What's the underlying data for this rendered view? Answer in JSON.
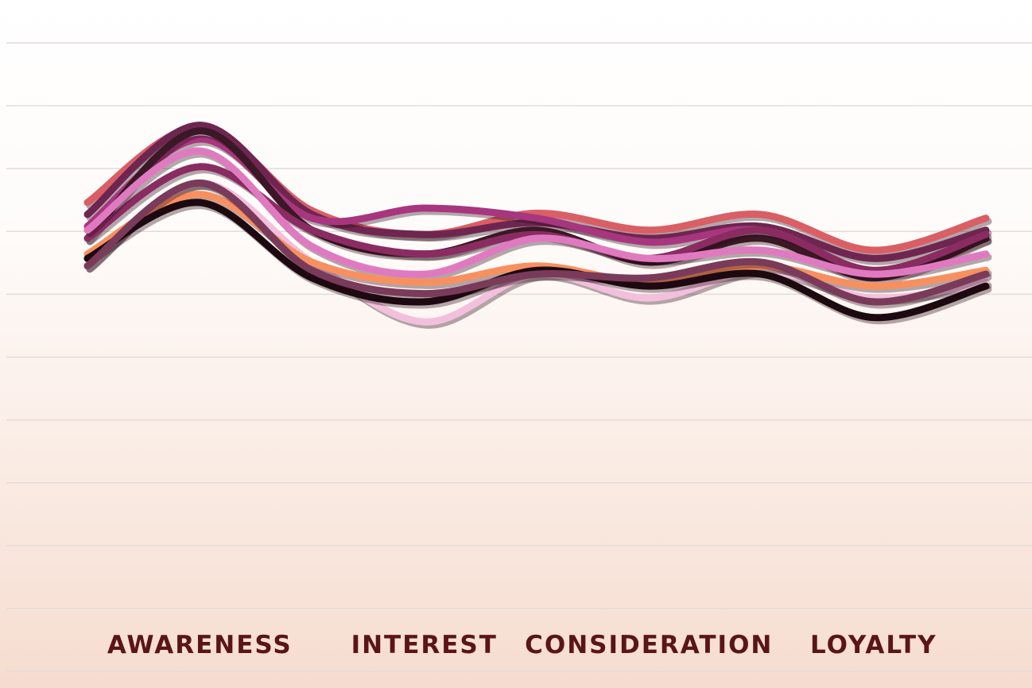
{
  "chart_data": {
    "type": "line",
    "categories": [
      null,
      "AWARENESS",
      null,
      "INTEREST",
      null,
      "CONSIDERATION",
      null,
      "LOYALTY",
      null
    ],
    "ylim": [
      0,
      10
    ],
    "yticks": [
      0,
      1,
      2,
      3,
      4,
      5,
      6,
      7,
      8,
      9,
      10
    ],
    "grid": true,
    "series": [
      {
        "color": "#d95f65",
        "values": [
          7.46,
          8.66,
          7.33,
          6.95,
          7.29,
          7.02,
          7.27,
          6.7,
          7.21
        ]
      },
      {
        "color": "#6e2650",
        "values": [
          7.27,
          8.69,
          7.27,
          6.95,
          7.14,
          6.89,
          7.08,
          6.57,
          7.02
        ]
      },
      {
        "color": "#a8367f",
        "values": [
          7.08,
          8.47,
          7.21,
          7.37,
          7.21,
          6.83,
          7.02,
          6.38,
          6.89
        ]
      },
      {
        "color": "#3b1826",
        "values": [
          6.89,
          8.6,
          7.02,
          6.64,
          7.02,
          6.51,
          6.89,
          6.26,
          6.89
        ]
      },
      {
        "color": "#8a2c62",
        "values": [
          6.89,
          8.03,
          7.02,
          6.64,
          6.95,
          6.57,
          7.02,
          6.38,
          6.95
        ]
      },
      {
        "color": "#e07ac0",
        "values": [
          7.02,
          8.28,
          6.76,
          6.32,
          6.89,
          6.57,
          6.7,
          6.32,
          6.64
        ]
      },
      {
        "color": "#f2c0dc",
        "values": [
          6.45,
          7.77,
          6.51,
          5.56,
          6.32,
          5.94,
          6.38,
          5.94,
          6.19
        ]
      },
      {
        "color": "#f79060",
        "values": [
          6.64,
          7.59,
          6.51,
          6.19,
          6.45,
          6.19,
          6.45,
          6.13,
          6.38
        ]
      },
      {
        "color": "#1c0a10",
        "values": [
          6.57,
          7.46,
          6.26,
          5.88,
          6.38,
          6.13,
          6.32,
          5.63,
          6.13
        ]
      },
      {
        "color": "#7a3a5a",
        "values": [
          6.45,
          7.77,
          6.38,
          6.01,
          6.32,
          6.26,
          6.51,
          5.88,
          6.32
        ]
      }
    ]
  }
}
